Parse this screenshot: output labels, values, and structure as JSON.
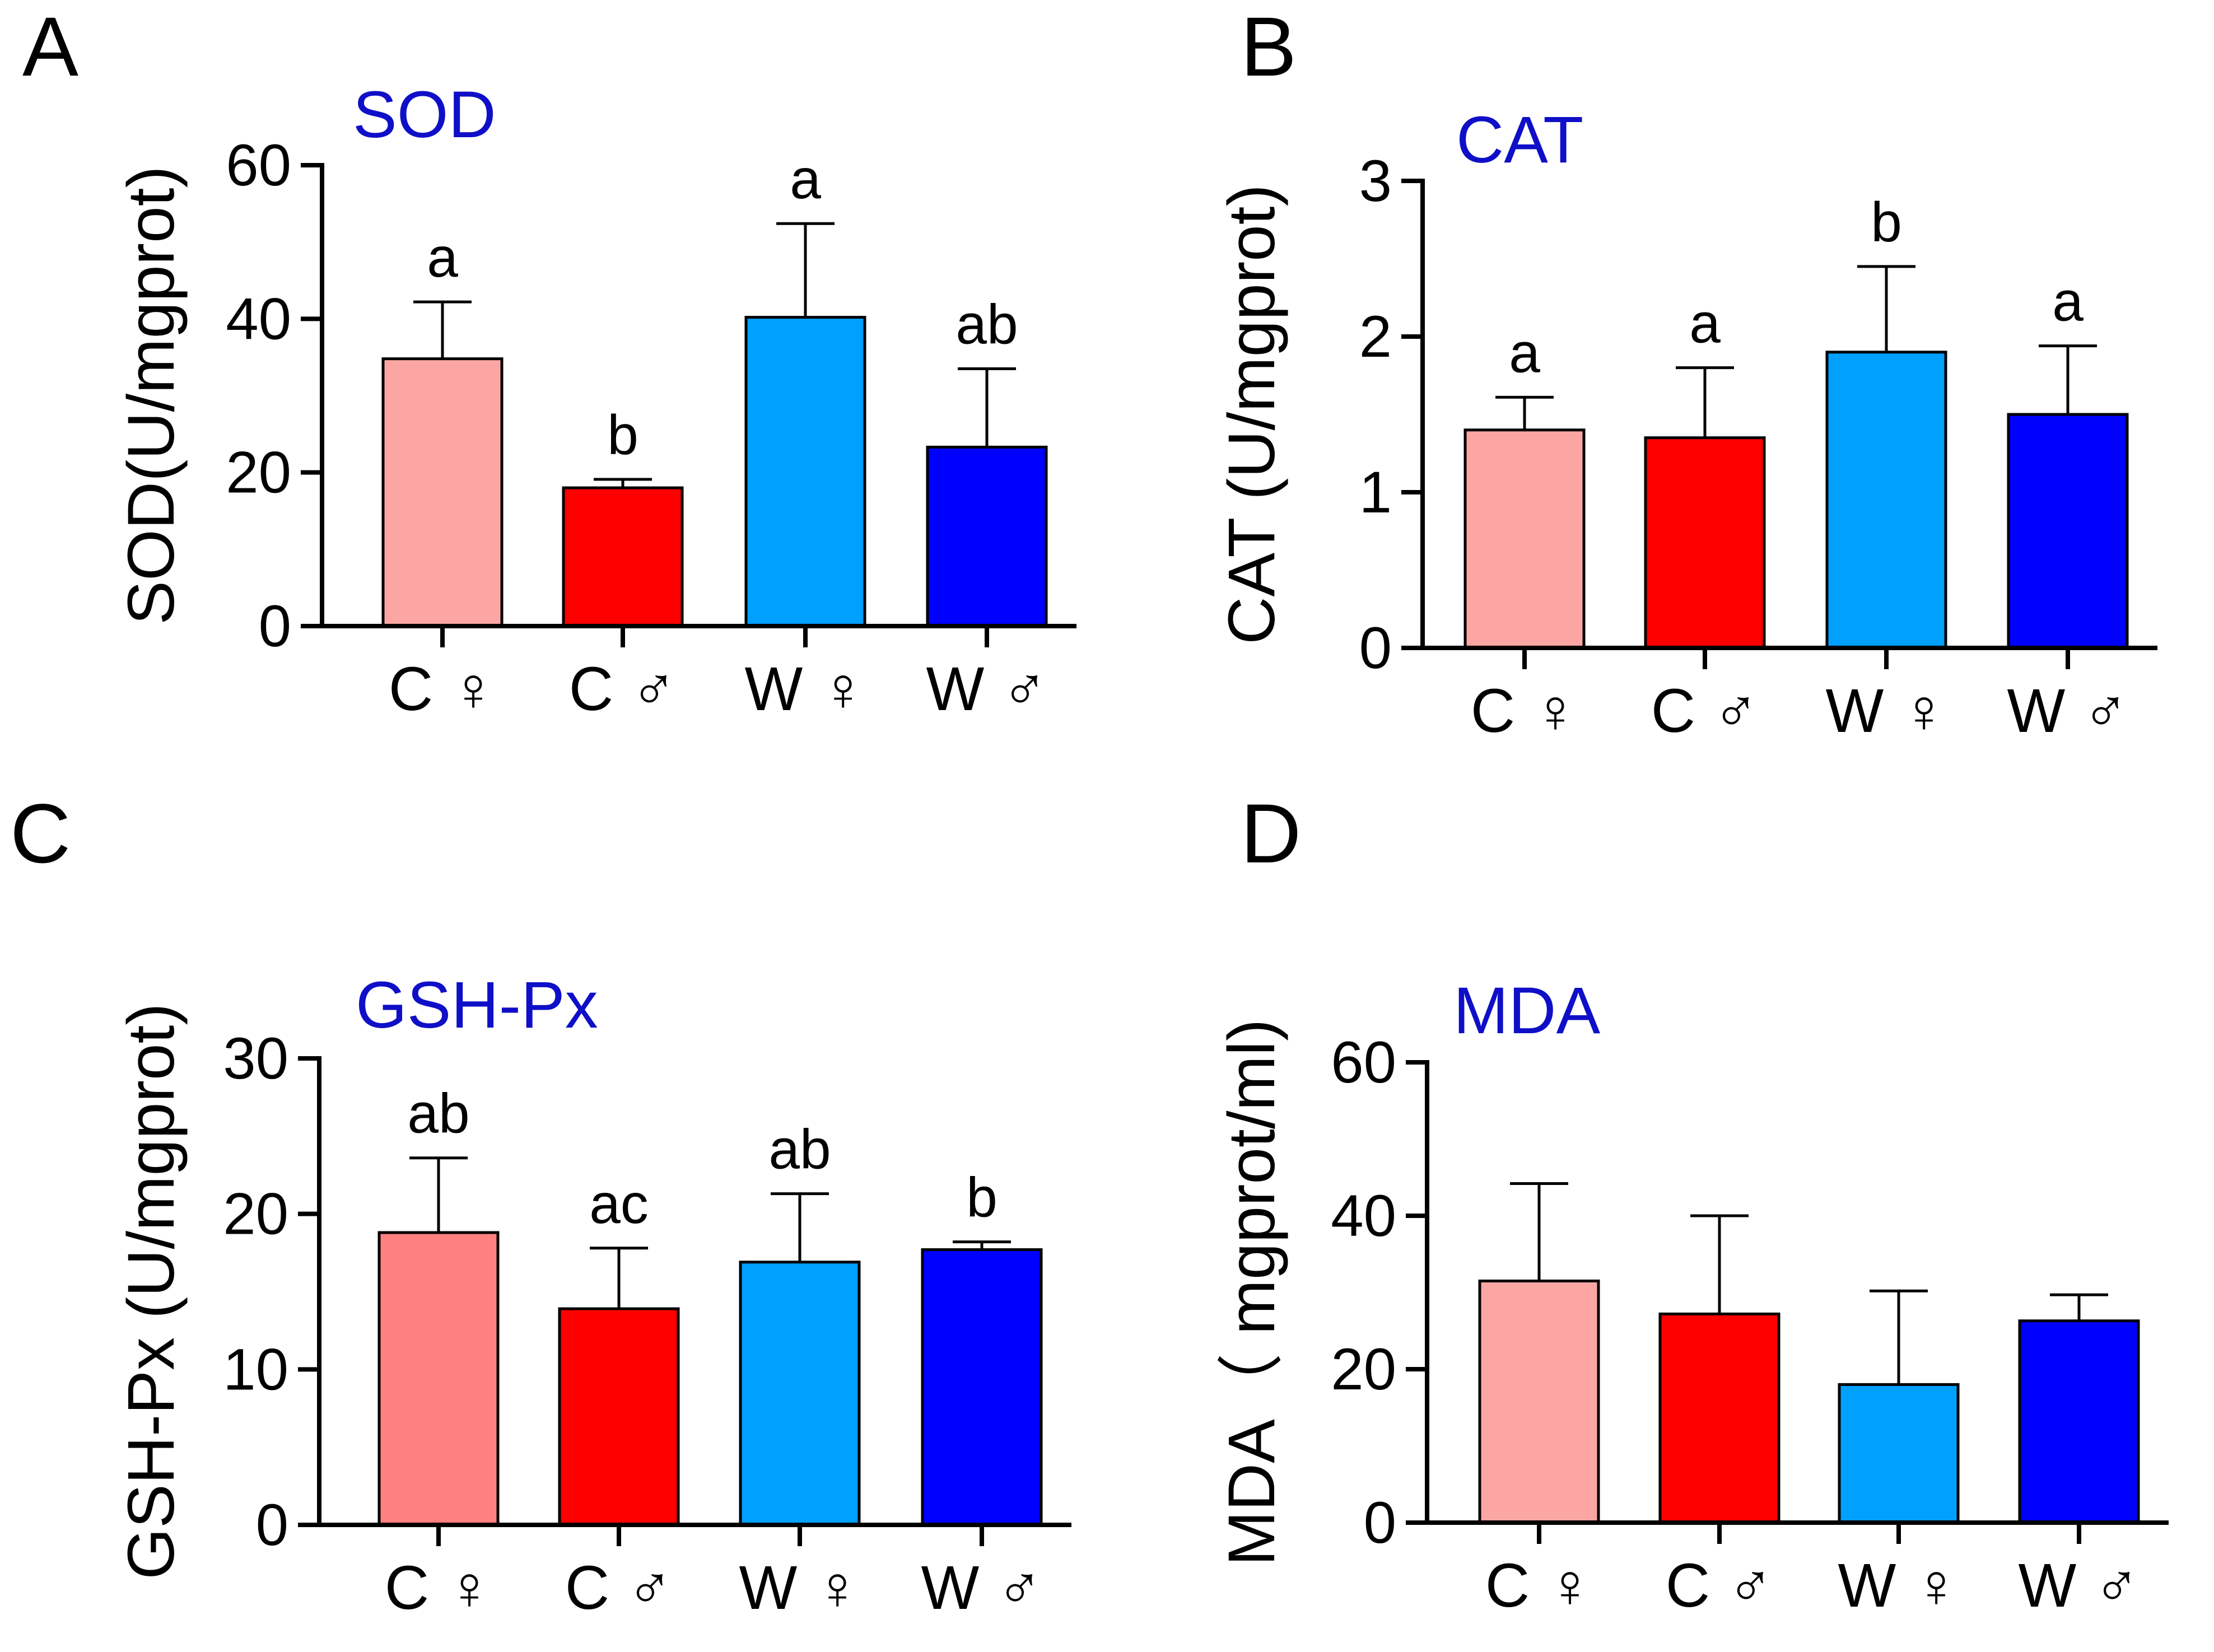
{
  "figure": {
    "colors": {
      "c_female": "#FBA6A3",
      "c_female_gsh": "#FF8080",
      "c_male": "#FF0000",
      "w_female": "#00A0FF",
      "w_male": "#0000FF",
      "title": "#0F0FC8",
      "axis": "#000000"
    }
  },
  "chart_data": [
    {
      "panel": "A",
      "type": "bar",
      "title": "SOD",
      "ylabel": "SOD(U/mgprot)",
      "xlabel": "",
      "ylim": [
        0,
        60
      ],
      "yticks": [
        0,
        20,
        40,
        60
      ],
      "categories": [
        "C ♀",
        "C ♂",
        "W ♀",
        "W ♂"
      ],
      "values": [
        34.8,
        18.0,
        40.2,
        23.3
      ],
      "errors": [
        7.4,
        1.1,
        12.2,
        10.2
      ],
      "labels": [
        "a",
        "b",
        "a",
        "ab"
      ],
      "bar_colors": [
        "#FBA6A3",
        "#FF0000",
        "#00A0FF",
        "#0000FF"
      ]
    },
    {
      "panel": "B",
      "type": "bar",
      "title": "CAT",
      "ylabel": "CAT (U/mgprot)",
      "xlabel": "",
      "ylim": [
        0,
        3
      ],
      "yticks": [
        0,
        1,
        2,
        3
      ],
      "categories": [
        "C ♀",
        "C ♂",
        "W ♀",
        "W ♂"
      ],
      "values": [
        1.4,
        1.35,
        1.9,
        1.5
      ],
      "errors": [
        0.21,
        0.45,
        0.55,
        0.44
      ],
      "labels": [
        "a",
        "a",
        "b",
        "a"
      ],
      "bar_colors": [
        "#FBA6A3",
        "#FF0000",
        "#00A0FF",
        "#0000FF"
      ]
    },
    {
      "panel": "C",
      "type": "bar",
      "title": "GSH-Px",
      "ylabel": "GSH-Px (U/mgprot)",
      "xlabel": "",
      "ylim": [
        0,
        30
      ],
      "yticks": [
        0,
        10,
        20,
        30
      ],
      "categories": [
        "C ♀",
        "C ♂",
        "W ♀",
        "W ♂"
      ],
      "values": [
        18.8,
        13.9,
        16.9,
        17.7
      ],
      "errors": [
        4.8,
        3.9,
        4.4,
        0.5
      ],
      "labels": [
        "ab",
        "ac",
        "ab",
        "b"
      ],
      "bar_colors": [
        "#FF8080",
        "#FF0000",
        "#00A0FF",
        "#0000FF"
      ]
    },
    {
      "panel": "D",
      "type": "bar",
      "title": "MDA",
      "ylabel": "MDA（ mgprot/ml)",
      "xlabel": "",
      "ylim": [
        0,
        60
      ],
      "yticks": [
        0,
        20,
        40,
        60
      ],
      "categories": [
        "C ♀",
        "C ♂",
        "W ♀",
        "W ♂"
      ],
      "values": [
        31.5,
        27.2,
        18.0,
        26.3
      ],
      "errors": [
        12.7,
        12.8,
        12.2,
        3.4
      ],
      "labels": [
        "",
        "",
        "",
        ""
      ],
      "bar_colors": [
        "#FBA6A3",
        "#FF0000",
        "#00A0FF",
        "#0000FF"
      ]
    }
  ]
}
